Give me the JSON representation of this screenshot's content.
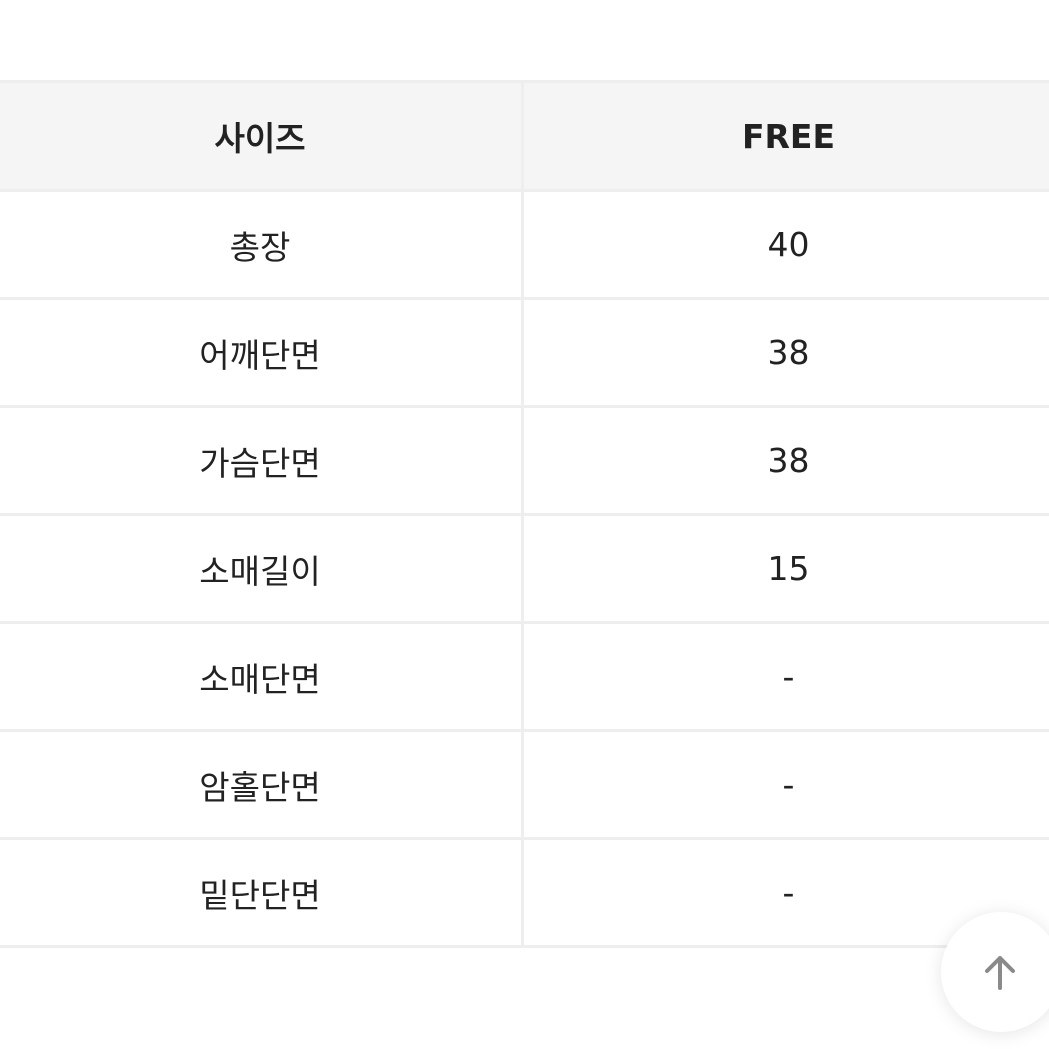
{
  "table": {
    "headers": [
      "사이즈",
      "FREE"
    ],
    "rows": [
      [
        "총장",
        "40"
      ],
      [
        "어깨단면",
        "38"
      ],
      [
        "가슴단면",
        "38"
      ],
      [
        "소매길이",
        "15"
      ],
      [
        "소매단면",
        "-"
      ],
      [
        "암홀단면",
        "-"
      ],
      [
        "밑단단면",
        "-"
      ]
    ]
  },
  "scroll_top_icon": "arrow-up-icon"
}
